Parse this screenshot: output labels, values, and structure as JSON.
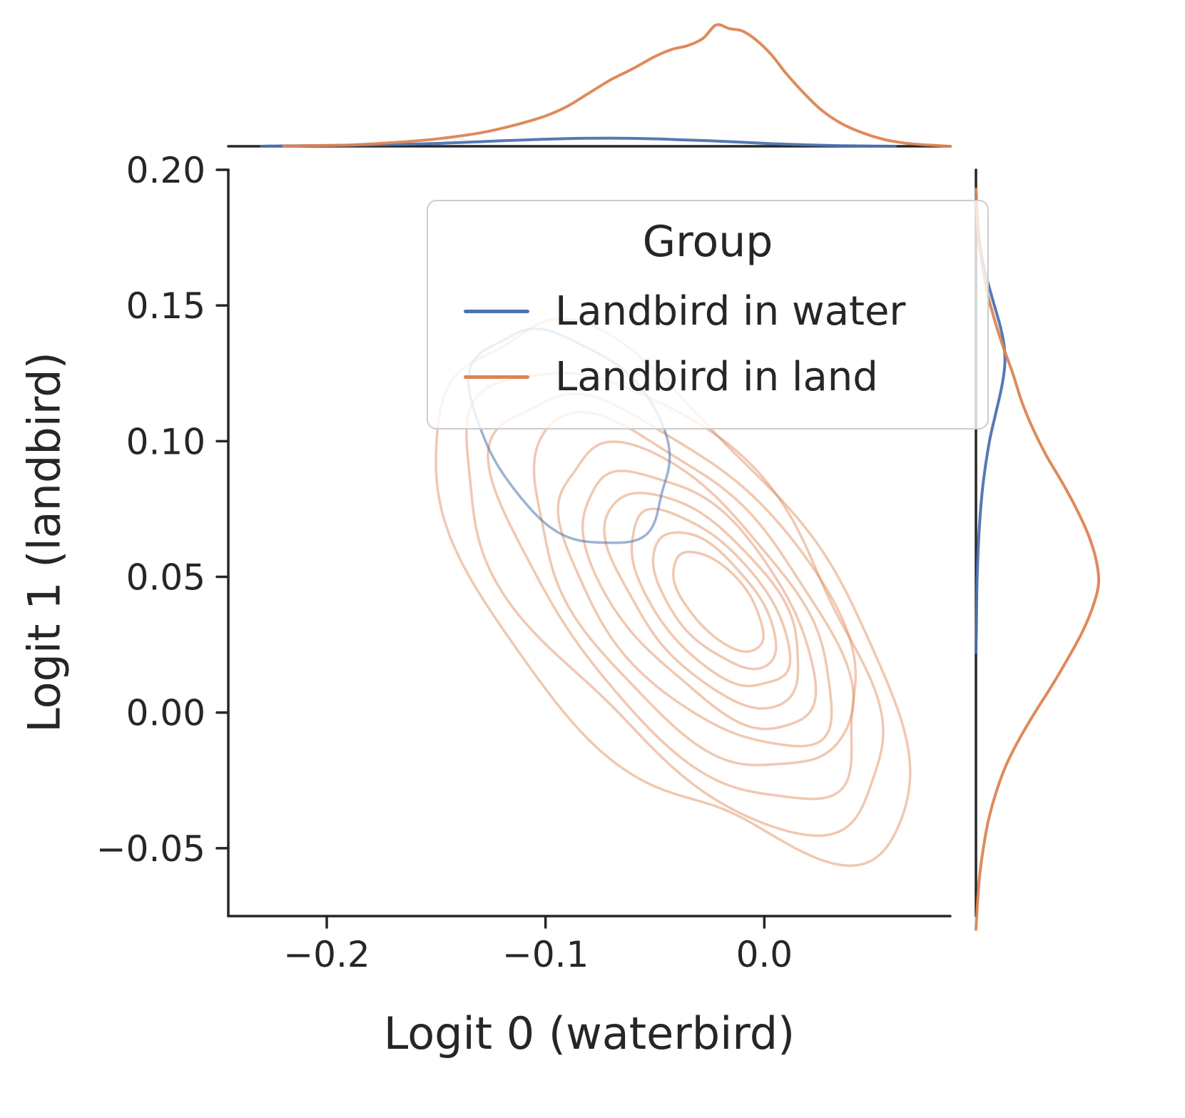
{
  "figure": {
    "background": "#ffffff"
  },
  "legend": {
    "title": "Group",
    "entries": [
      {
        "label": "Landbird in water",
        "color": "#4c72b0"
      },
      {
        "label": "Landbird in land",
        "color": "#dd8452"
      }
    ]
  },
  "chart_data": {
    "type": "kde-contour-joint",
    "title": "",
    "xlabel": "Logit 0 (waterbird)",
    "ylabel": "Logit 1 (landbird)",
    "xlim": [
      -0.245,
      0.085
    ],
    "ylim": [
      -0.075,
      0.2
    ],
    "grid": false,
    "legend_position": "upper center inside axes",
    "xticks": [
      {
        "v": -0.2,
        "label": "−0.2"
      },
      {
        "v": -0.1,
        "label": "−0.1"
      },
      {
        "v": 0.0,
        "label": "0.0"
      }
    ],
    "yticks": [
      {
        "v": -0.05,
        "label": "−0.05"
      },
      {
        "v": 0.0,
        "label": "0.00"
      },
      {
        "v": 0.05,
        "label": "0.05"
      },
      {
        "v": 0.1,
        "label": "0.10"
      },
      {
        "v": 0.15,
        "label": "0.15"
      },
      {
        "v": 0.2,
        "label": "0.20"
      }
    ],
    "series": [
      {
        "name": "Landbird in land",
        "color": "#dd8452",
        "contour_alpha": 0.45,
        "contour": {
          "cx0": -0.044,
          "cy0": 0.044,
          "cx1": -0.021,
          "cy1": 0.041,
          "rx": 0.131,
          "ry": 0.062,
          "angle": -40,
          "levels": [
            {
              "scale": 1.0,
              "seed": 1.3,
              "wobble": 0.085
            },
            {
              "scale": 0.88,
              "seed": 2.7,
              "wobble": 0.075
            },
            {
              "scale": 0.77,
              "seed": 4.1,
              "wobble": 0.065
            },
            {
              "scale": 0.67,
              "seed": 5.9,
              "wobble": 0.058
            },
            {
              "scale": 0.575,
              "seed": 7.2,
              "wobble": 0.05
            },
            {
              "scale": 0.49,
              "seed": 8.8,
              "wobble": 0.045
            },
            {
              "scale": 0.41,
              "seed": 10.4,
              "wobble": 0.04
            },
            {
              "scale": 0.335,
              "seed": 12.1,
              "wobble": 0.035
            },
            {
              "scale": 0.26,
              "seed": 13.6,
              "wobble": 0.03
            },
            {
              "scale": 0.19,
              "seed": 15.2,
              "wobble": 0.025
            }
          ]
        },
        "marginal_top": [
          [
            -0.21,
            0.005
          ],
          [
            -0.19,
            0.01
          ],
          [
            -0.17,
            0.03
          ],
          [
            -0.15,
            0.06
          ],
          [
            -0.13,
            0.11
          ],
          [
            -0.115,
            0.17
          ],
          [
            -0.1,
            0.25
          ],
          [
            -0.09,
            0.33
          ],
          [
            -0.08,
            0.44
          ],
          [
            -0.07,
            0.55
          ],
          [
            -0.06,
            0.64
          ],
          [
            -0.05,
            0.74
          ],
          [
            -0.042,
            0.8
          ],
          [
            -0.035,
            0.83
          ],
          [
            -0.028,
            0.89
          ],
          [
            -0.022,
            1.0
          ],
          [
            -0.016,
            0.97
          ],
          [
            -0.01,
            0.95
          ],
          [
            -0.004,
            0.88
          ],
          [
            0.003,
            0.76
          ],
          [
            0.01,
            0.6
          ],
          [
            0.018,
            0.44
          ],
          [
            0.026,
            0.3
          ],
          [
            0.035,
            0.19
          ],
          [
            0.045,
            0.11
          ],
          [
            0.055,
            0.055
          ],
          [
            0.065,
            0.025
          ],
          [
            0.075,
            0.01
          ]
        ],
        "marginal_right": [
          [
            -0.072,
            0.01
          ],
          [
            -0.06,
            0.03
          ],
          [
            -0.05,
            0.06
          ],
          [
            -0.04,
            0.1
          ],
          [
            -0.03,
            0.16
          ],
          [
            -0.02,
            0.24
          ],
          [
            -0.01,
            0.35
          ],
          [
            0.0,
            0.48
          ],
          [
            0.01,
            0.62
          ],
          [
            0.02,
            0.75
          ],
          [
            0.03,
            0.87
          ],
          [
            0.04,
            0.96
          ],
          [
            0.048,
            1.0
          ],
          [
            0.056,
            0.98
          ],
          [
            0.065,
            0.92
          ],
          [
            0.075,
            0.82
          ],
          [
            0.085,
            0.7
          ],
          [
            0.095,
            0.57
          ],
          [
            0.105,
            0.46
          ],
          [
            0.115,
            0.37
          ],
          [
            0.125,
            0.3
          ],
          [
            0.135,
            0.22
          ],
          [
            0.145,
            0.15
          ],
          [
            0.155,
            0.09
          ],
          [
            0.165,
            0.05
          ],
          [
            0.175,
            0.02
          ],
          [
            0.185,
            0.008
          ]
        ]
      },
      {
        "name": "Landbird in water",
        "color": "#4c72b0",
        "contour_alpha": 0.55,
        "contour": {
          "cx0": -0.088,
          "cy0": 0.102,
          "cx1": -0.088,
          "cy1": 0.102,
          "rx": 0.05,
          "ry": 0.033,
          "angle": -35,
          "levels": [
            {
              "scale": 1.0,
              "seed": 4.4,
              "wobble": 0.06
            }
          ]
        },
        "marginal_top": [
          [
            -0.22,
            0.003
          ],
          [
            -0.19,
            0.008
          ],
          [
            -0.16,
            0.018
          ],
          [
            -0.14,
            0.03
          ],
          [
            -0.12,
            0.045
          ],
          [
            -0.1,
            0.058
          ],
          [
            -0.085,
            0.065
          ],
          [
            -0.07,
            0.067
          ],
          [
            -0.055,
            0.063
          ],
          [
            -0.04,
            0.055
          ],
          [
            -0.025,
            0.045
          ],
          [
            -0.01,
            0.033
          ],
          [
            0.005,
            0.02
          ],
          [
            0.02,
            0.011
          ],
          [
            0.035,
            0.005
          ],
          [
            0.05,
            0.002
          ]
        ],
        "marginal_right": [
          [
            0.03,
            0.003
          ],
          [
            0.05,
            0.01
          ],
          [
            0.07,
            0.03
          ],
          [
            0.085,
            0.06
          ],
          [
            0.1,
            0.11
          ],
          [
            0.11,
            0.16
          ],
          [
            0.12,
            0.21
          ],
          [
            0.128,
            0.235
          ],
          [
            0.135,
            0.23
          ],
          [
            0.142,
            0.2
          ],
          [
            0.15,
            0.15
          ],
          [
            0.158,
            0.1
          ],
          [
            0.166,
            0.055
          ],
          [
            0.175,
            0.025
          ],
          [
            0.185,
            0.008
          ]
        ]
      }
    ]
  }
}
